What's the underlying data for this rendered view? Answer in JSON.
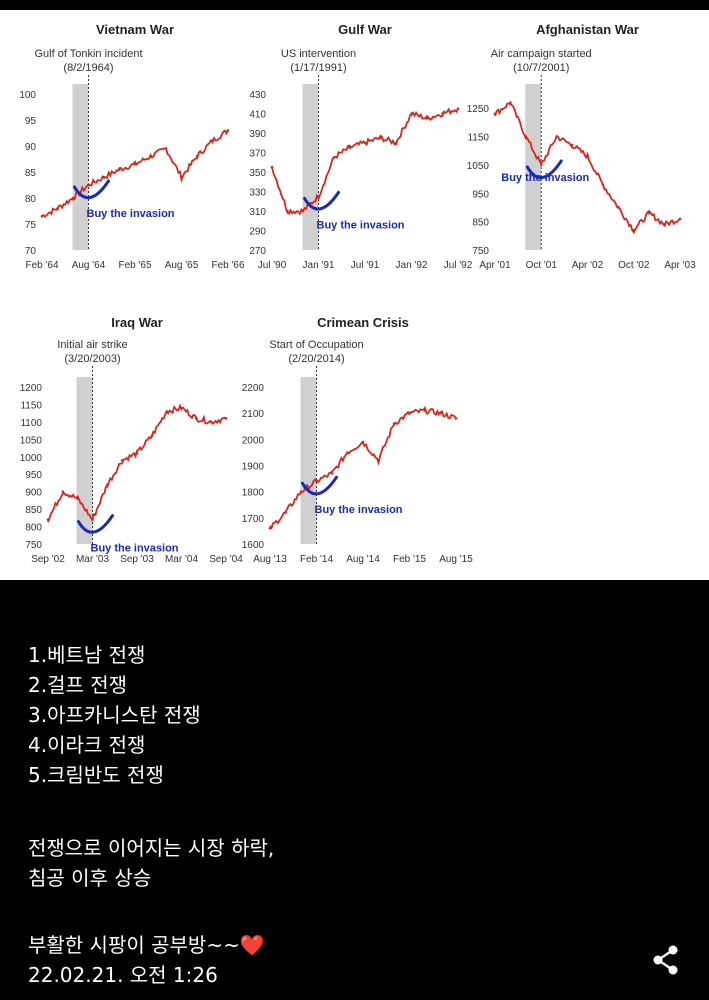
{
  "chart_data": [
    {
      "type": "line",
      "title": "Vietnam War",
      "annotation": "Gulf of Tonkin incident",
      "annotation_date": "(8/2/1964)",
      "buy_label": "Buy the invasion",
      "yticks": [
        100,
        95,
        90,
        85,
        80,
        75,
        70
      ],
      "ylim": [
        70,
        100
      ],
      "xticks": [
        "Feb '64",
        "Aug '64",
        "Feb '65",
        "Aug '65",
        "Feb '66"
      ],
      "x": [
        "Feb '64",
        "Apr '64",
        "Jun '64",
        "Aug '64",
        "Oct '64",
        "Dec '64",
        "Feb '65",
        "Apr '65",
        "Jun '65",
        "Aug '65",
        "Oct '65",
        "Dec '65",
        "Feb '66"
      ],
      "values": [
        76.5,
        78,
        80,
        82.5,
        84,
        85.5,
        86.5,
        88,
        89.5,
        84,
        88,
        91,
        93
      ],
      "event_index": 3
    },
    {
      "type": "line",
      "title": "Gulf War",
      "annotation": "US intervention",
      "annotation_date": "(1/17/1991)",
      "buy_label": "Buy the invasion",
      "yticks": [
        430,
        410,
        390,
        370,
        350,
        330,
        310,
        290,
        270
      ],
      "ylim": [
        270,
        430
      ],
      "xticks": [
        "Jul '90",
        "Jan '91",
        "Jul '91",
        "Jan '92",
        "Jul '92"
      ],
      "x": [
        "Jul '90",
        "Sep '90",
        "Nov '90",
        "Jan '91",
        "Mar '91",
        "May '91",
        "Jul '91",
        "Sep '91",
        "Nov '91",
        "Jan '92",
        "Mar '92",
        "May '92",
        "Jul '92"
      ],
      "values": [
        355,
        310,
        310,
        325,
        365,
        375,
        380,
        385,
        380,
        410,
        405,
        410,
        415
      ],
      "event_index": 3
    },
    {
      "type": "line",
      "title": "Afghanistan War",
      "annotation": "Air campaign started",
      "annotation_date": "(10/7/2001)",
      "buy_label": "Buy the invasion",
      "yticks": [
        1250,
        1150,
        1050,
        950,
        850,
        750
      ],
      "ylim": [
        750,
        1300
      ],
      "xticks": [
        "Apr '01",
        "Oct '01",
        "Apr '02",
        "Oct '02",
        "Apr '03"
      ],
      "x": [
        "Apr '01",
        "Jun '01",
        "Aug '01",
        "Oct '01",
        "Dec '01",
        "Feb '02",
        "Apr '02",
        "Jun '02",
        "Aug '02",
        "Oct '02",
        "Dec '02",
        "Feb '03",
        "Apr '03"
      ],
      "values": [
        1230,
        1270,
        1150,
        1050,
        1150,
        1120,
        1080,
        980,
        900,
        820,
        880,
        840,
        860
      ],
      "event_index": 3
    },
    {
      "type": "line",
      "title": "Iraq War",
      "annotation": "Initial air strike",
      "annotation_date": "(3/20/2003)",
      "buy_label": "Buy the invasion",
      "yticks": [
        1200,
        1150,
        1100,
        1050,
        1000,
        950,
        900,
        850,
        800,
        750
      ],
      "ylim": [
        750,
        1200
      ],
      "xticks": [
        "Sep '02",
        "Mar '03",
        "Sep '03",
        "Mar '04",
        "Sep '04"
      ],
      "x": [
        "Sep '02",
        "Nov '02",
        "Jan '03",
        "Mar '03",
        "May '03",
        "Jul '03",
        "Sep '03",
        "Nov '03",
        "Jan '04",
        "Mar '04",
        "May '04",
        "Jul '04",
        "Sep '04"
      ],
      "values": [
        820,
        900,
        880,
        820,
        920,
        990,
        1010,
        1060,
        1130,
        1140,
        1110,
        1100,
        1110
      ],
      "event_index": 3
    },
    {
      "type": "line",
      "title": "Crimean Crisis",
      "annotation": "Start of Occupation",
      "annotation_date": "(2/20/2014)",
      "buy_label": "Buy the invasion",
      "yticks": [
        2200,
        2100,
        2000,
        1900,
        1800,
        1700,
        1600
      ],
      "ylim": [
        1600,
        2200
      ],
      "xticks": [
        "Aug '13",
        "Feb '14",
        "Aug '14",
        "Feb '15",
        "Aug '15"
      ],
      "x": [
        "Aug '13",
        "Oct '13",
        "Dec '13",
        "Feb '14",
        "Apr '14",
        "Jun '14",
        "Aug '14",
        "Oct '14",
        "Dec '14",
        "Feb '15",
        "Apr '15",
        "Jun '15",
        "Aug '15"
      ],
      "values": [
        1660,
        1720,
        1800,
        1840,
        1870,
        1950,
        1990,
        1920,
        2060,
        2100,
        2110,
        2100,
        2080
      ],
      "event_index": 3
    }
  ],
  "caption": {
    "list": [
      "1.베트남 전쟁",
      "2.걸프 전쟁",
      "3.아프카니스탄 전쟁",
      "4.이라크 전쟁",
      "5.크림반도 전쟁"
    ],
    "summary_line1": "전쟁으로 이어지는 시장 하락,",
    "summary_line2": "침공 이후 상승",
    "signature": "부활한 시팡이 공부방~~",
    "heart": "❤️",
    "timestamp": "22.02.21. 오전 1:26"
  },
  "colors": {
    "line": "#d9261c",
    "curve": "#1a2ab8",
    "shade": "#d0d0d0",
    "panel": "#ffffff",
    "background": "#000000",
    "text": "#ffffff"
  },
  "icons": {
    "share": "share-icon"
  }
}
